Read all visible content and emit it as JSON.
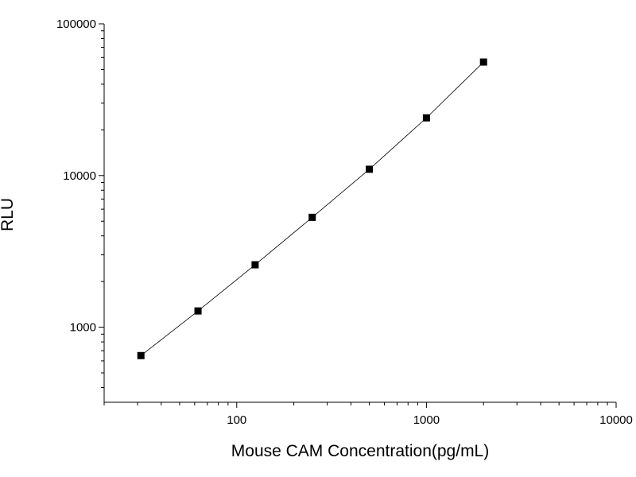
{
  "chart_data": {
    "type": "scatter",
    "xlabel": "Mouse CAM Concentration(pg/mL)",
    "ylabel": "RLU",
    "x_scale": "log",
    "y_scale": "log",
    "xlim": [
      20,
      10000
    ],
    "ylim": [
      320,
      100000
    ],
    "x_ticks": [
      {
        "value": 100,
        "label": "100"
      },
      {
        "value": 1000,
        "label": "1000"
      },
      {
        "value": 10000,
        "label": "10000"
      }
    ],
    "y_ticks": [
      {
        "value": 1000,
        "label": "1000"
      },
      {
        "value": 10000,
        "label": "10000"
      },
      {
        "value": 100000,
        "label": "100000"
      }
    ],
    "grid": false,
    "legend": "none",
    "series": [
      {
        "marker": "square",
        "line": true,
        "color": "#000000",
        "x": [
          31.25,
          62.5,
          125,
          250,
          500,
          1000,
          2000
        ],
        "y": [
          650,
          1280,
          2580,
          5300,
          11000,
          24000,
          56000
        ]
      }
    ]
  }
}
